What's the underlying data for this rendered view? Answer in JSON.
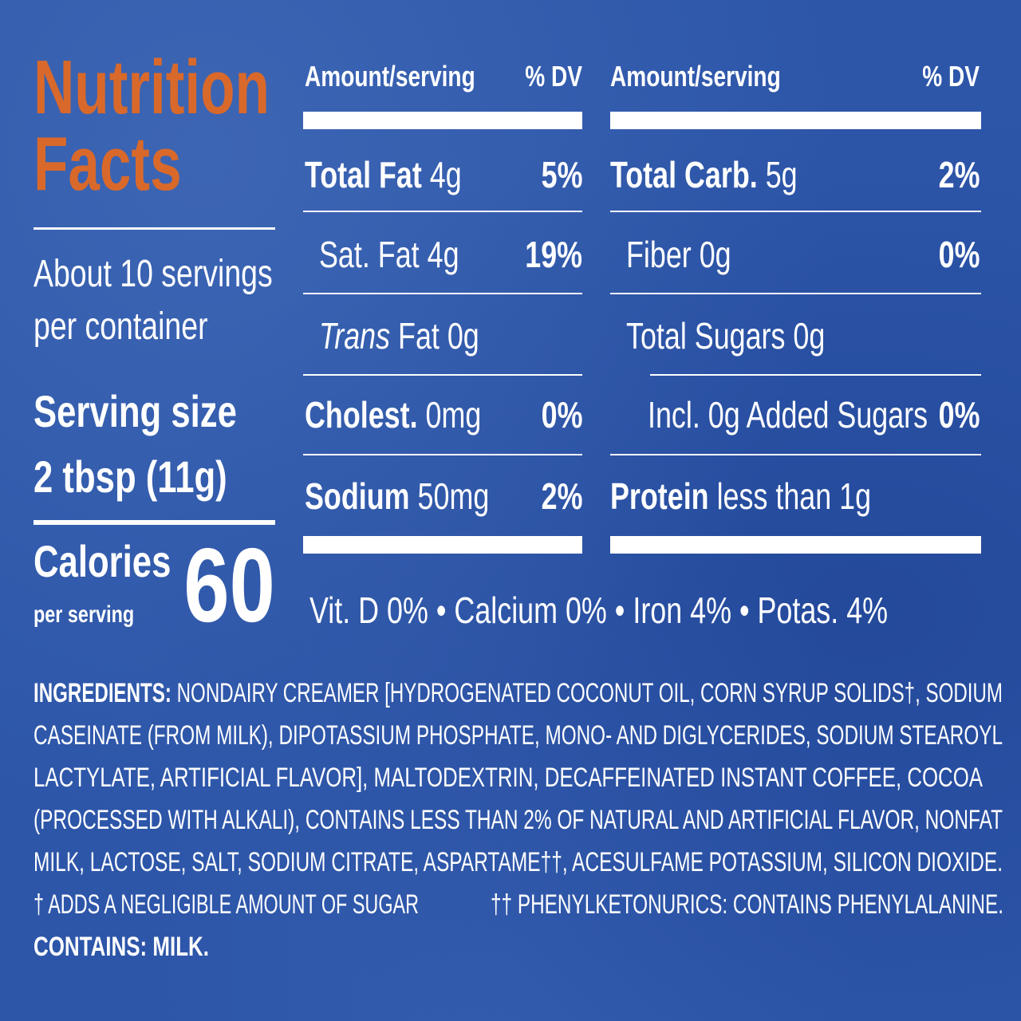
{
  "header": {
    "title_line1": "Nutrition",
    "title_line2": "Facts"
  },
  "servings": {
    "per_container_line1": "About 10 servings",
    "per_container_line2": "per container",
    "serving_size_line1": "Serving size",
    "serving_size_line2": "2 tbsp (11g)"
  },
  "calories": {
    "label": "Calories",
    "sublabel": "per serving",
    "value": "60"
  },
  "left_table": {
    "header": {
      "amount": "Amount/serving",
      "dv": "% DV"
    },
    "rows": [
      {
        "name": "Total Fat",
        "amount": "4g",
        "dv": "5%"
      },
      {
        "name": "Sat. Fat",
        "amount": "4g",
        "dv": "19%"
      },
      {
        "name": "Trans",
        "amount": "Fat 0g"
      },
      {
        "name": "Cholest.",
        "amount": "0mg",
        "dv": "0%"
      },
      {
        "name": "Sodium",
        "amount": "50mg",
        "dv": "2%"
      }
    ]
  },
  "right_table": {
    "header": {
      "amount": "Amount/serving",
      "dv": "% DV"
    },
    "rows": [
      {
        "name": "Total Carb.",
        "amount": "5g",
        "dv": "2%"
      },
      {
        "name": "Fiber",
        "amount": "0g",
        "dv": "0%"
      },
      {
        "name": "Total Sugars",
        "amount": "0g"
      },
      {
        "name": "Incl. 0g Added Sugars",
        "dv": "0%"
      },
      {
        "name": "Protein",
        "amount": "less than 1g"
      }
    ]
  },
  "vitamins": [
    "Vit. D 0%",
    "Calcium 0%",
    "Iron 4%",
    "Potas. 4%"
  ],
  "ingredients": {
    "label": "INGREDIENTS:",
    "lines": [
      "NONDAIRY CREAMER [HYDROGENATED COCONUT OIL, CORN SYRUP SOLIDS†, SODIUM",
      "CASEINATE (FROM MILK), DIPOTASSIUM PHOSPHATE, MONO- AND DIGLYCERIDES, SODIUM STEAROYL",
      "LACTYLATE, ARTIFICIAL FLAVOR], MALTODEXTRIN, DECAFFEINATED INSTANT COFFEE, COCOA",
      "(PROCESSED WITH ALKALI), CONTAINS LESS THAN 2% OF NATURAL AND ARTIFICIAL FLAVOR, NONFAT",
      "MILK, LACTOSE, SALT, SODIUM CITRATE, ASPARTAME††, ACESULFAME POTASSIUM, SILICON DIOXIDE."
    ],
    "footnote_1": "† ADDS A NEGLIGIBLE AMOUNT OF SUGAR",
    "footnote_2": "†† PHENYLKETONURICS: CONTAINS PHENYLALANINE.",
    "contains": "CONTAINS: MILK."
  }
}
